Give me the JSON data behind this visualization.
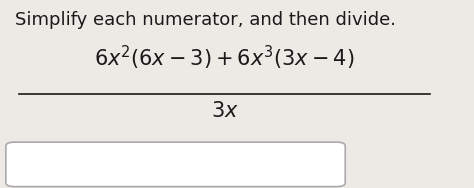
{
  "title": "Simplify each numerator, and then divide.",
  "numerator": "$6x^2(6x-3)+6x^3(3x-4)$",
  "denominator": "$3x$",
  "bg_color": "#ede9e5",
  "text_color": "#1a1a1a",
  "title_fontsize": 13,
  "math_fontsize": 15,
  "fig_width": 4.74,
  "fig_height": 1.88
}
